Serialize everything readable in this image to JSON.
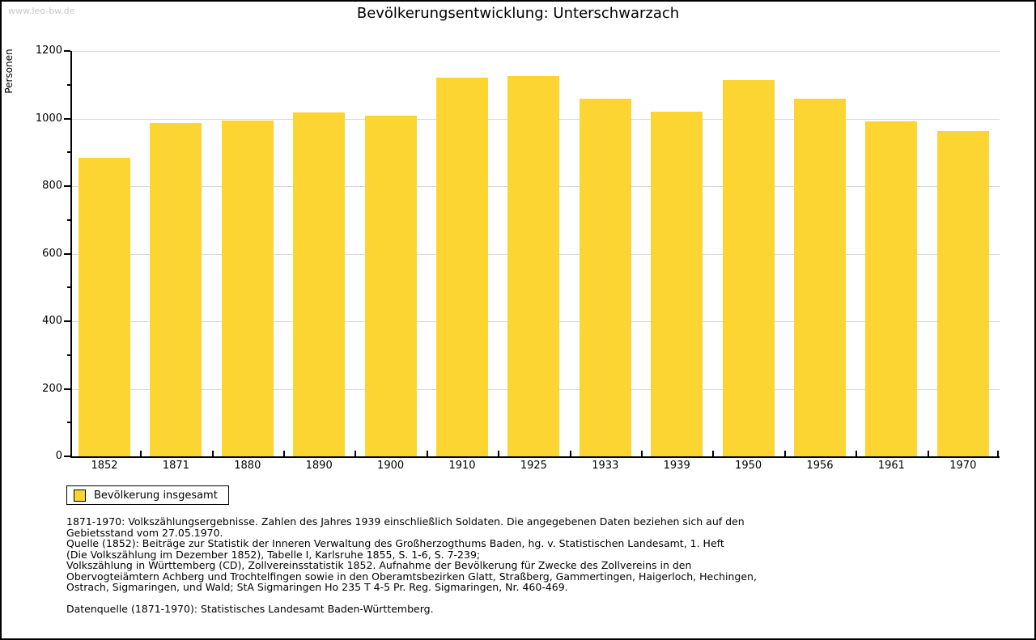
{
  "watermark": "www.leo-bw.de",
  "title": "Bevölkerungsentwicklung: Unterschwarzach",
  "chart_data": {
    "type": "bar",
    "title": "Bevölkerungsentwicklung: Unterschwarzach",
    "xlabel": "",
    "ylabel": "Personen",
    "ylim": [
      0,
      1200
    ],
    "ytick_step": 200,
    "yminor_step": 100,
    "grid": "horizontal-major-only",
    "bar_color": "#FCD532",
    "gridline_color": "#d9d9d9",
    "categories": [
      "1852",
      "1871",
      "1880",
      "1890",
      "1900",
      "1910",
      "1925",
      "1933",
      "1939",
      "1950",
      "1956",
      "1961",
      "1970"
    ],
    "values": [
      885,
      988,
      994,
      1018,
      1009,
      1120,
      1125,
      1058,
      1020,
      1114,
      1059,
      991,
      964
    ],
    "series_name": "Bevölkerung insgesamt",
    "legend": {
      "position": "bottom-left",
      "entries": [
        {
          "label": "Bevölkerung insgesamt",
          "color": "#FCD532"
        }
      ]
    }
  },
  "footer": {
    "lines": [
      "1871-1970: Volkszählungsergebnisse. Zahlen des Jahres 1939 einschließlich Soldaten. Die angegebenen Daten beziehen sich auf den",
      "Gebietsstand vom 27.05.1970.",
      "Quelle (1852): Beiträge zur Statistik der Inneren Verwaltung des Großherzogthums Baden, hg. v. Statistischen Landesamt, 1. Heft",
      "(Die Volkszählung im Dezember 1852), Tabelle I, Karlsruhe 1855, S. 1-6, S. 7-239;",
      "Volkszählung in Württemberg (CD), Zollvereinsstatistik 1852. Aufnahme der Bevölkerung für Zwecke des Zollvereins in den",
      "Obervogteiämtern Achberg und Trochtelfingen sowie in den Oberamtsbezirken Glatt, Straßberg, Gammertingen, Haigerloch, Hechingen,",
      "Ostrach, Sigmaringen, und Wald; StA Sigmaringen Ho 235 T 4-5 Pr. Reg. Sigmaringen, Nr. 460-469."
    ],
    "datasource": "Datenquelle (1871-1970): Statistisches Landesamt Baden-Württemberg."
  }
}
